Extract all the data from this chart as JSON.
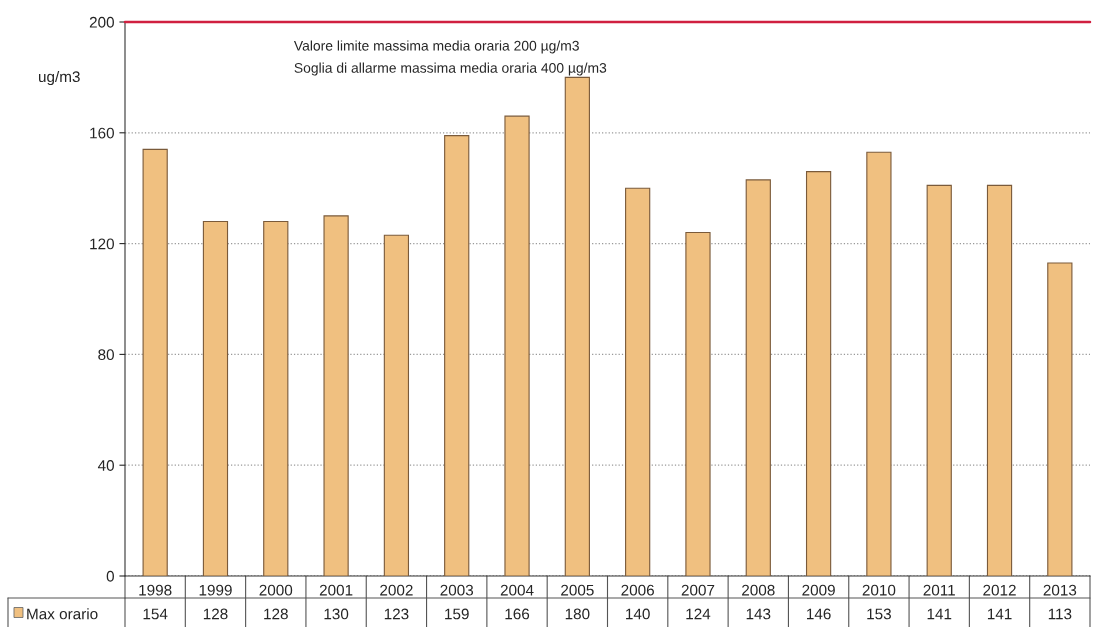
{
  "chart_data": {
    "type": "bar",
    "categories": [
      "1998",
      "1999",
      "2000",
      "2001",
      "2002",
      "2003",
      "2004",
      "2005",
      "2006",
      "2007",
      "2008",
      "2009",
      "2010",
      "2011",
      "2012",
      "2013"
    ],
    "series": [
      {
        "name": "Max orario",
        "color": "#f0c080",
        "values": [
          154,
          128,
          128,
          130,
          123,
          159,
          166,
          180,
          140,
          124,
          143,
          146,
          153,
          141,
          141,
          113
        ]
      }
    ],
    "ylabel": "ug/m3",
    "ylim": [
      0,
      200
    ],
    "yticks": [
      0,
      40,
      80,
      120,
      160,
      200
    ],
    "grid": "y",
    "ref_lines": [
      {
        "axis": "y",
        "value": 200,
        "color": "#d02040",
        "line_style": "solid"
      }
    ],
    "annotations": [
      "Valore limite massima media oraria 200 µg/m3",
      "Soglia di allarme massima media oraria 400 µg/m3"
    ],
    "data_labels": true
  }
}
